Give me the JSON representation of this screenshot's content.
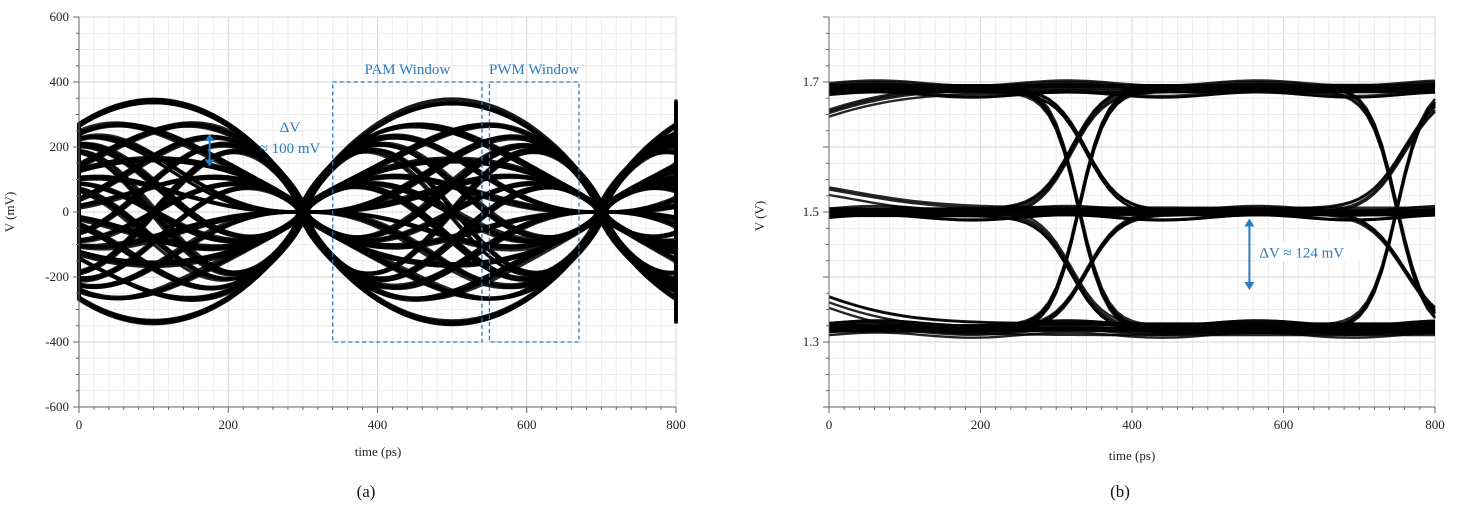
{
  "chart_data": [
    {
      "type": "line",
      "subtype": "eye-diagram",
      "caption": "(a)",
      "xlabel": "time (ps)",
      "ylabel": "V (mV)",
      "xlim": [
        0,
        800
      ],
      "ylim": [
        -600,
        600
      ],
      "x_ticks": [
        "0",
        "200",
        "400",
        "600",
        "800"
      ],
      "y_ticks": [
        "600",
        "400",
        "200",
        "0",
        "-200",
        "-400",
        "-600"
      ],
      "grid": true,
      "trace_color": "#000000",
      "unit_interval_ps": 400,
      "crossing_times_ps": [
        -100,
        300,
        700
      ],
      "signal_levels_mv": [
        -340,
        -160,
        0,
        160,
        340
      ],
      "eye_level_pairs_mv": [
        [
          340,
          160
        ],
        [
          160,
          -160
        ],
        [
          -160,
          -340
        ],
        [
          340,
          0
        ],
        [
          0,
          -340
        ],
        [
          160,
          0
        ],
        [
          -160,
          0
        ],
        [
          340,
          -160
        ],
        [
          160,
          -340
        ],
        [
          340,
          -340
        ]
      ],
      "annotations": [
        {
          "kind": "box",
          "label": "PAM Window",
          "x": [
            340,
            540
          ],
          "y": [
            -400,
            400
          ],
          "color": "#2a7ac0"
        },
        {
          "kind": "box",
          "label": "PWM Window",
          "x": [
            550,
            670
          ],
          "y": [
            -400,
            400
          ],
          "color": "#2a7ac0"
        },
        {
          "kind": "arrow",
          "label_line1": "ΔV",
          "label_line2": "≈ 100 mV",
          "x": 175,
          "y": [
            140,
            240
          ],
          "color": "#2a7ac0"
        }
      ]
    },
    {
      "type": "line",
      "subtype": "eye-diagram",
      "caption": "(b)",
      "xlabel": "time (ps)",
      "ylabel": "V (V)",
      "xlim": [
        0,
        800
      ],
      "ylim": [
        1.2,
        1.8
      ],
      "x_ticks": [
        "0",
        "200",
        "400",
        "600",
        "800"
      ],
      "y_ticks": [
        "1.7",
        "1.5",
        "1.3"
      ],
      "y_tick_values": [
        1.7,
        1.5,
        1.3
      ],
      "grid": true,
      "trace_color": "#000000",
      "signal_levels_v": [
        1.32,
        1.5,
        1.69
      ],
      "annotations": [
        {
          "kind": "arrow",
          "label": "ΔV ≈ 124 mV",
          "x": 555,
          "y": [
            1.38,
            1.49
          ],
          "color": "#2a7ac0"
        }
      ]
    }
  ]
}
